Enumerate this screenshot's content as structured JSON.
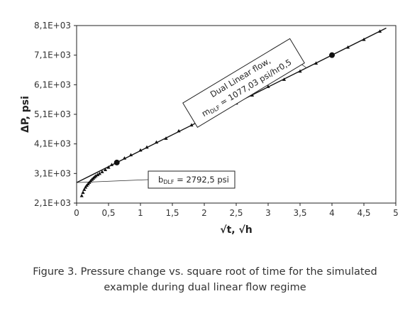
{
  "chart_data": {
    "type": "scatter",
    "xlabel": "√t, √h",
    "ylabel": "ΔP, psi",
    "xlim": [
      0,
      5
    ],
    "ylim": [
      2100,
      8100
    ],
    "x_ticks": [
      "0",
      "0,5",
      "1",
      "1,5",
      "2",
      "2,5",
      "3",
      "3,5",
      "4",
      "4,5",
      "5"
    ],
    "y_ticks": [
      "2,1E+03",
      "3,1E+03",
      "4,1E+03",
      "5,1E+03",
      "6,1E+03",
      "7,1E+03",
      "8,1E+03"
    ],
    "grid": false,
    "series": [
      {
        "marker": "triangle",
        "x": [
          0.08,
          0.1,
          0.12,
          0.14,
          0.16,
          0.18,
          0.2,
          0.22,
          0.24,
          0.26,
          0.28,
          0.3,
          0.33,
          0.36,
          0.4,
          0.45,
          0.5,
          0.55,
          0.75,
          0.85,
          1.0,
          1.1,
          1.25,
          1.4,
          1.6,
          1.8,
          2.0,
          2.25,
          2.5,
          2.75,
          3.0,
          3.25,
          3.5,
          3.75,
          4.25,
          4.5,
          4.75
        ],
        "y": [
          2350,
          2460,
          2560,
          2640,
          2700,
          2750,
          2800,
          2850,
          2900,
          2940,
          2980,
          3020,
          3060,
          3100,
          3160,
          3230,
          3310,
          3400,
          3620,
          3730,
          3890,
          3990,
          4160,
          4290,
          4540,
          4740,
          4960,
          5220,
          5480,
          5750,
          6040,
          6280,
          6560,
          6830,
          7370,
          7630,
          7910
        ]
      }
    ],
    "fit_line": {
      "x": [
        0,
        4.85
      ],
      "y": [
        2792.5,
        8016
      ]
    },
    "highlighted_points": [
      {
        "x": 0.63,
        "y": 3470
      },
      {
        "x": 4.0,
        "y": 7100
      }
    ],
    "annotations": {
      "flow_box": {
        "line1": "Dual Linear flow,",
        "m_prefix": "m",
        "m_sub": "DLF",
        "m_value": " = 1077,03 psi/hr0,5"
      },
      "intercept_box": {
        "b_prefix": "b",
        "b_sub": "DLF",
        "b_value": " = 2792,5 psi"
      }
    }
  },
  "caption": {
    "line1": "Figure 3. Pressure change vs. square root of time for the simulated",
    "line2": "example during dual linear flow regime"
  }
}
